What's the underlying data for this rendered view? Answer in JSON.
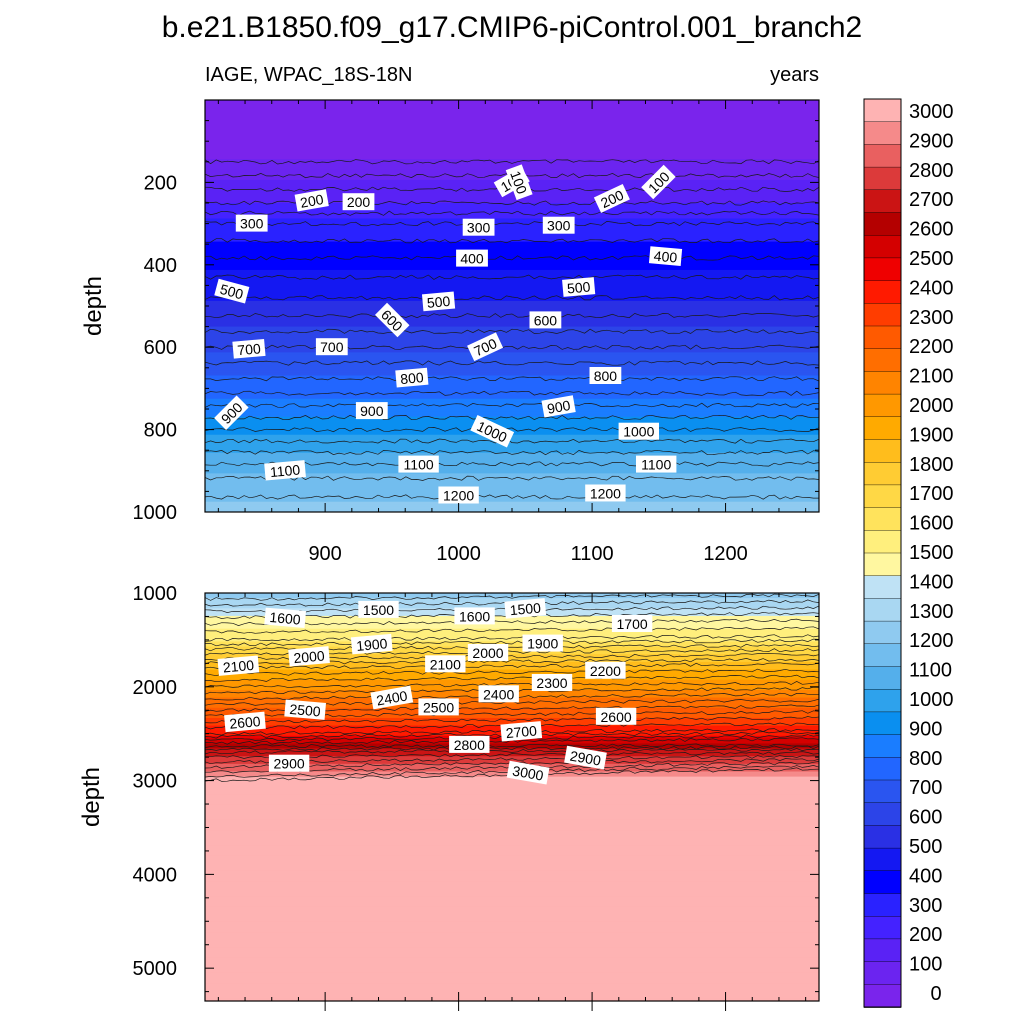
{
  "title": "b.e21.B1850.f09_g17.CMIP6-piControl.001_branch2",
  "left_label": "IAGE, WPAC_18S-18N",
  "right_label": "years",
  "chart_data": [
    {
      "type": "contour",
      "panel": "upper",
      "xlabel": "",
      "ylabel": "depth",
      "xlim": [
        810,
        1270
      ],
      "ylim": [
        1000,
        0
      ],
      "x_ticks": [
        900,
        1000,
        1100,
        1200
      ],
      "y_ticks": [
        200,
        400,
        600,
        800,
        1000
      ],
      "profile": {
        "depth": [
          0,
          120,
          150,
          250,
          300,
          400,
          500,
          600,
          700,
          800,
          900,
          1000
        ],
        "value": [
          0,
          0,
          50,
          200,
          300,
          420,
          520,
          650,
          780,
          950,
          1130,
          1240
        ]
      },
      "contour_labels": [
        {
          "text": "100",
          "x": 1040,
          "depth": 200,
          "angle": -30
        },
        {
          "text": "100",
          "x": 1045,
          "depth": 200,
          "angle": 70
        },
        {
          "text": "100",
          "x": 1150,
          "depth": 200,
          "angle": -45
        },
        {
          "text": "200",
          "x": 890,
          "depth": 245,
          "angle": -10
        },
        {
          "text": "200",
          "x": 925,
          "depth": 248,
          "angle": 0
        },
        {
          "text": "200",
          "x": 1115,
          "depth": 240,
          "angle": -25
        },
        {
          "text": "300",
          "x": 845,
          "depth": 300,
          "angle": 0
        },
        {
          "text": "300",
          "x": 1015,
          "depth": 310,
          "angle": 0
        },
        {
          "text": "300",
          "x": 1075,
          "depth": 305,
          "angle": 0
        },
        {
          "text": "400",
          "x": 1010,
          "depth": 385,
          "angle": 0
        },
        {
          "text": "400",
          "x": 1155,
          "depth": 380,
          "angle": 5
        },
        {
          "text": "500",
          "x": 830,
          "depth": 465,
          "angle": 15
        },
        {
          "text": "500",
          "x": 985,
          "depth": 490,
          "angle": -5
        },
        {
          "text": "500",
          "x": 1090,
          "depth": 455,
          "angle": -5
        },
        {
          "text": "600",
          "x": 950,
          "depth": 535,
          "angle": 45
        },
        {
          "text": "600",
          "x": 1065,
          "depth": 535,
          "angle": 0
        },
        {
          "text": "700",
          "x": 843,
          "depth": 605,
          "angle": -5
        },
        {
          "text": "700",
          "x": 905,
          "depth": 600,
          "angle": 0
        },
        {
          "text": "700",
          "x": 1020,
          "depth": 600,
          "angle": -25
        },
        {
          "text": "800",
          "x": 965,
          "depth": 675,
          "angle": -5
        },
        {
          "text": "800",
          "x": 1110,
          "depth": 670,
          "angle": 0
        },
        {
          "text": "900",
          "x": 830,
          "depth": 760,
          "angle": -45
        },
        {
          "text": "900",
          "x": 935,
          "depth": 755,
          "angle": 0
        },
        {
          "text": "900",
          "x": 1075,
          "depth": 745,
          "angle": -10
        },
        {
          "text": "1000",
          "x": 1025,
          "depth": 805,
          "angle": 25
        },
        {
          "text": "1000",
          "x": 1135,
          "depth": 805,
          "angle": 0
        },
        {
          "text": "1100",
          "x": 870,
          "depth": 900,
          "angle": -5
        },
        {
          "text": "1100",
          "x": 970,
          "depth": 885,
          "angle": 0
        },
        {
          "text": "1100",
          "x": 1148,
          "depth": 885,
          "angle": 0
        },
        {
          "text": "1200",
          "x": 1000,
          "depth": 960,
          "angle": 0
        },
        {
          "text": "1200",
          "x": 1110,
          "depth": 955,
          "angle": 0
        }
      ]
    },
    {
      "type": "contour",
      "panel": "lower",
      "xlabel": "",
      "ylabel": "depth",
      "xlim": [
        810,
        1270
      ],
      "ylim": [
        5350,
        1000
      ],
      "x_ticks": [
        900,
        1000,
        1100,
        1200
      ],
      "y_ticks": [
        1000,
        2000,
        3000,
        4000,
        5000
      ],
      "profile": {
        "depth": [
          1000,
          1300,
          1500,
          1800,
          2000,
          2500,
          2700,
          2950,
          3000,
          5350
        ],
        "value": [
          1250,
          1480,
          1600,
          1900,
          2050,
          2450,
          2750,
          2990,
          3050,
          3060
        ]
      },
      "contour_labels": [
        {
          "text": "1500",
          "x": 940,
          "depth": 1180,
          "angle": 0
        },
        {
          "text": "1500",
          "x": 1050,
          "depth": 1170,
          "angle": -5
        },
        {
          "text": "1600",
          "x": 870,
          "depth": 1270,
          "angle": 5
        },
        {
          "text": "1600",
          "x": 1012,
          "depth": 1250,
          "angle": 0
        },
        {
          "text": "1700",
          "x": 1130,
          "depth": 1330,
          "angle": 0
        },
        {
          "text": "1900",
          "x": 935,
          "depth": 1550,
          "angle": -5
        },
        {
          "text": "1900",
          "x": 1063,
          "depth": 1540,
          "angle": 0
        },
        {
          "text": "2000",
          "x": 888,
          "depth": 1680,
          "angle": -5
        },
        {
          "text": "2000",
          "x": 1022,
          "depth": 1640,
          "angle": 0
        },
        {
          "text": "2100",
          "x": 835,
          "depth": 1780,
          "angle": -5
        },
        {
          "text": "2100",
          "x": 990,
          "depth": 1760,
          "angle": 0
        },
        {
          "text": "2200",
          "x": 1110,
          "depth": 1830,
          "angle": 0
        },
        {
          "text": "2300",
          "x": 1070,
          "depth": 1960,
          "angle": 0
        },
        {
          "text": "2400",
          "x": 950,
          "depth": 2120,
          "angle": -10
        },
        {
          "text": "2400",
          "x": 1030,
          "depth": 2080,
          "angle": 0
        },
        {
          "text": "2500",
          "x": 885,
          "depth": 2250,
          "angle": 5
        },
        {
          "text": "2500",
          "x": 985,
          "depth": 2220,
          "angle": 0
        },
        {
          "text": "2600",
          "x": 840,
          "depth": 2380,
          "angle": -5
        },
        {
          "text": "2600",
          "x": 1118,
          "depth": 2320,
          "angle": 0
        },
        {
          "text": "2700",
          "x": 1047,
          "depth": 2480,
          "angle": -5
        },
        {
          "text": "2800",
          "x": 1008,
          "depth": 2620,
          "angle": 0
        },
        {
          "text": "2900",
          "x": 873,
          "depth": 2820,
          "angle": 0
        },
        {
          "text": "2900",
          "x": 1095,
          "depth": 2760,
          "angle": 10
        },
        {
          "text": "3000",
          "x": 1052,
          "depth": 2920,
          "angle": 10
        }
      ]
    }
  ],
  "colorbar": {
    "labels": [
      "3000",
      "2900",
      "2800",
      "2700",
      "2600",
      "2500",
      "2400",
      "2300",
      "2200",
      "2100",
      "2000",
      "1900",
      "1800",
      "1700",
      "1600",
      "1500",
      "1400",
      "1300",
      "1200",
      "1100",
      "1000",
      "900",
      "800",
      "700",
      "600",
      "500",
      "400",
      "300",
      "200",
      "100",
      "0"
    ],
    "colors": [
      "#feb3b3",
      "#f58a8a",
      "#e96060",
      "#dc3a3a",
      "#cb1414",
      "#b40000",
      "#d40000",
      "#ef0000",
      "#ff1a00",
      "#ff3d00",
      "#ff5a00",
      "#ff6e00",
      "#ff8400",
      "#ff9800",
      "#ffaa00",
      "#ffbd1c",
      "#ffcc33",
      "#ffd845",
      "#ffe35c",
      "#ffef7d",
      "#fff7a0",
      "#bfe2f5",
      "#a9d7f2",
      "#8fcaf0",
      "#72bdee",
      "#54afeb",
      "#2ea2ec",
      "#0a8ff0",
      "#1a7dff",
      "#2266ff",
      "#2a55f0",
      "#2c44e8",
      "#2a30e4",
      "#1418f2",
      "#0000ff",
      "#2a22ff",
      "#4422ff",
      "#5a22f5",
      "#6b24f0",
      "#7a24ec"
    ]
  }
}
